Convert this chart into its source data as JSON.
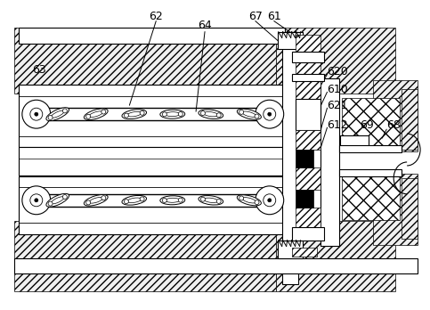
{
  "bg_color": "#ffffff",
  "figsize": [
    4.83,
    3.48
  ],
  "dpi": 100,
  "lw": 0.8
}
